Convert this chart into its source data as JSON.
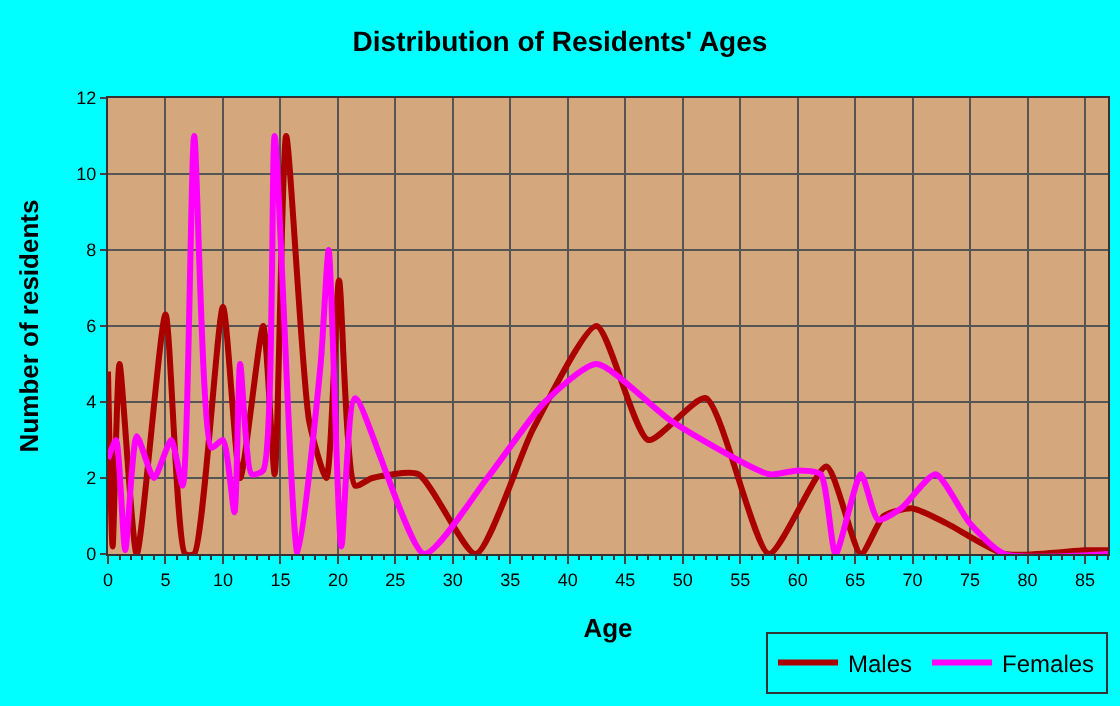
{
  "chart_data": {
    "type": "line",
    "title": "Distribution of Residents' Ages",
    "xlabel": "Age",
    "ylabel": "Number of residents",
    "xlim": [
      0,
      87
    ],
    "xticks": [
      0,
      5,
      10,
      15,
      20,
      25,
      30,
      35,
      40,
      45,
      50,
      55,
      60,
      65,
      70,
      75,
      80,
      85
    ],
    "ylim": [
      0,
      12
    ],
    "yticks": [
      0,
      2,
      4,
      6,
      8,
      10,
      12
    ],
    "grid": true,
    "legend": "bottom right",
    "marker": "none",
    "line_style": "solid",
    "series": [
      {
        "name": "Males",
        "color": "#aa0000",
        "x": [
          0,
          0.4,
          1,
          2.5,
          5,
          6.7,
          7.5,
          10,
          11.5,
          13.5,
          14.5,
          15.5,
          17.5,
          19,
          20.1,
          21.5,
          23,
          27,
          32,
          37,
          42.5,
          47,
          52,
          57.5,
          62.5,
          65.5,
          67.5,
          70,
          73,
          78,
          85,
          87
        ],
        "values": [
          4.8,
          0.2,
          5,
          0,
          6.3,
          0,
          0,
          6.5,
          2,
          6,
          2.1,
          11,
          3.5,
          2,
          7.2,
          1.8,
          2,
          2.1,
          0,
          3.3,
          6,
          3,
          4.1,
          0,
          2.3,
          0,
          1,
          1.2,
          0.8,
          0,
          0.1,
          0.1
        ]
      },
      {
        "name": "Females",
        "color": "#ff00ff",
        "x": [
          0,
          0.7,
          1.5,
          2.5,
          4,
          5.5,
          6.5,
          7.5,
          9,
          10,
          11,
          11.5,
          12.5,
          13.5,
          14.5,
          16.5,
          18.5,
          19.2,
          20.3,
          21.5,
          27.5,
          33,
          38,
          42.5,
          49,
          57.5,
          60,
          62,
          63.3,
          65.5,
          67,
          69,
          72,
          75,
          78,
          87
        ],
        "values": [
          2.5,
          3,
          0.1,
          3.1,
          2,
          3,
          1.8,
          11,
          2.8,
          3,
          1.1,
          5,
          2.1,
          2.2,
          11,
          0,
          5,
          8,
          0.2,
          4.1,
          0,
          2,
          4,
          5,
          3.5,
          2.1,
          2.2,
          2.1,
          0,
          2.1,
          0.9,
          1.2,
          2.1,
          0.8,
          0,
          0
        ]
      }
    ]
  }
}
